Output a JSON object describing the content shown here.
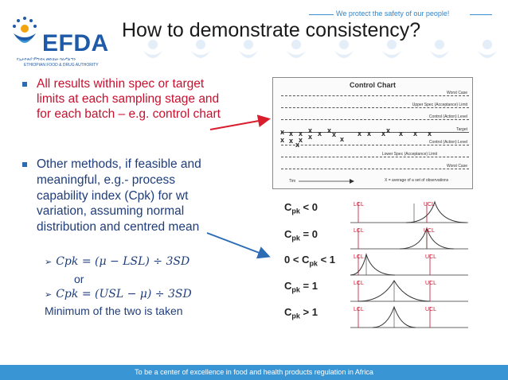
{
  "header": {
    "tagline": "We protect the safety of our people!",
    "logo_text": "EFDA",
    "logo_subtitle_1": "የኢትዮጵያ ምግብና መድኃኒት ባለሥልጣን",
    "logo_subtitle_2": "ETHIOPIAN FOOD & DRUG AUTHORITY",
    "title": "How to demonstrate consistency?"
  },
  "bullets": {
    "first": "All results within spec or target limits at each sampling stage and for each batch – e.g. control chart",
    "second": "Other methods, if feasible and meaningful, e.g.- process capability index (Cpk) for wt variation, assuming normal distribution and centred mean",
    "formula_1": "Cpk = (μ − LSL) ÷ 3SD",
    "or": "or",
    "formula_2": "Cpk = (USL − μ) ÷ 3SD",
    "minimum": "Minimum of the two is taken"
  },
  "control_chart": {
    "title": "Control Chart",
    "worst_case_top": "Worst Case",
    "upper_spec": "Upper Spec (Acceptance) Limit",
    "upper_control": "Control (Action) Level",
    "target": "Target",
    "lower_control": "Control (Action) Level",
    "lower_spec": "Lower Spec (Acceptance) Limit",
    "worst_case_bottom": "Worst Case",
    "time_label": "Tim",
    "legend": "X = average of a set of observations",
    "marker": "x"
  },
  "cpk_cases": [
    {
      "prefix": "C",
      "sub": "pk",
      "suffix": " < 0",
      "lcl": "LCL",
      "ucl": "UCL"
    },
    {
      "prefix": "C",
      "sub": "pk",
      "suffix": " = 0",
      "lcl": "LCL",
      "ucl": "UCL"
    },
    {
      "prefix": "0 < C",
      "sub": "pk",
      "suffix": " < 1",
      "lcl": "LCL",
      "ucl": "UCL"
    },
    {
      "prefix": "C",
      "sub": "pk",
      "suffix": " = 1",
      "lcl": "LCL",
      "ucl": "UCL"
    },
    {
      "prefix": "C",
      "sub": "pk",
      "suffix": " > 1",
      "lcl": "LCL",
      "ucl": "UCL"
    }
  ],
  "footer": {
    "text": "To be a center of excellence in food and health products regulation in Africa"
  },
  "colors": {
    "brand_blue": "#1e5aa8",
    "accent_red": "#c8102e",
    "body_navy": "#1f3d7a",
    "footer_blue": "#3a95d5",
    "watermark": "#e3eef8"
  }
}
